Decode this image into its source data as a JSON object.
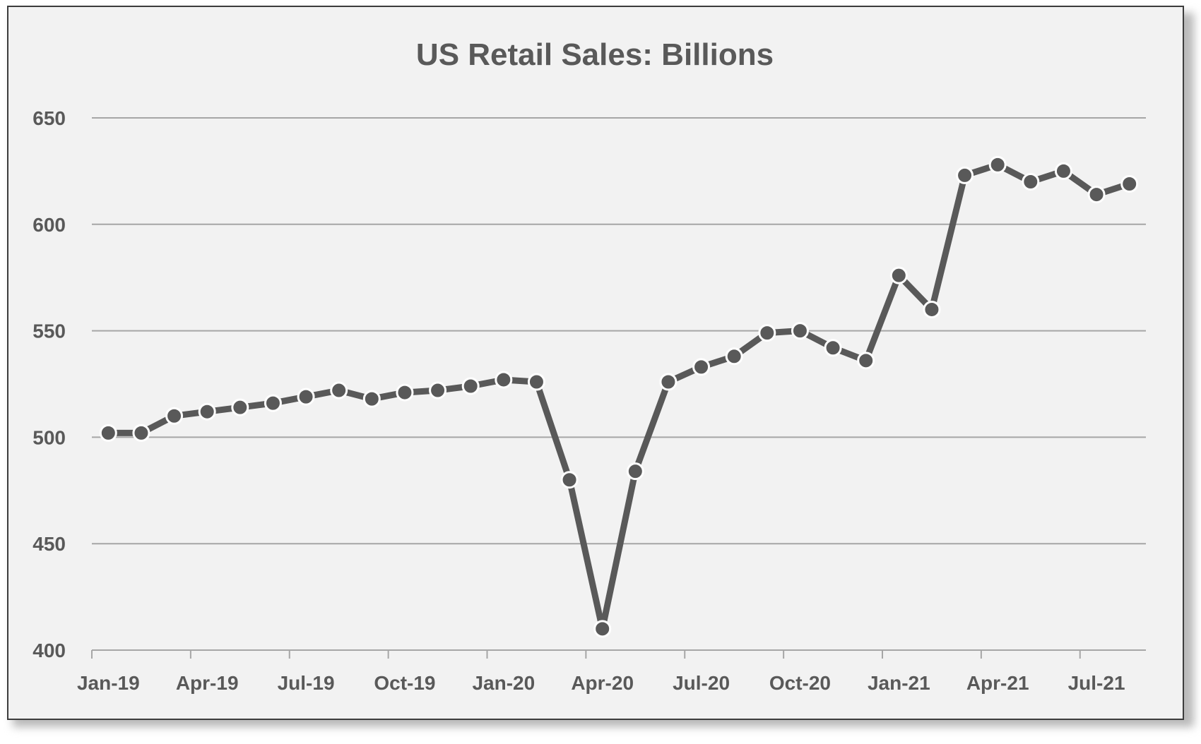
{
  "chart_data": {
    "type": "line",
    "title": "US Retail Sales: Billions",
    "xlabel": "",
    "ylabel": "",
    "ylim": [
      400,
      650
    ],
    "yticks": [
      400,
      450,
      500,
      550,
      600,
      650
    ],
    "x_tick_labels": [
      "Jan-19",
      "Apr-19",
      "Jul-19",
      "Oct-19",
      "Jan-20",
      "Apr-20",
      "Jul-20",
      "Oct-20",
      "Jan-21",
      "Apr-21",
      "Jul-21"
    ],
    "grid": true,
    "legend": "none",
    "colors": {
      "line": "#595959",
      "marker_edge": "#ffffff",
      "grid": "#a6a6a6",
      "background": "#f2f2f2"
    },
    "x": [
      "2019-01",
      "2019-02",
      "2019-03",
      "2019-04",
      "2019-05",
      "2019-06",
      "2019-07",
      "2019-08",
      "2019-09",
      "2019-10",
      "2019-11",
      "2019-12",
      "2020-01",
      "2020-02",
      "2020-03",
      "2020-04",
      "2020-05",
      "2020-06",
      "2020-07",
      "2020-08",
      "2020-09",
      "2020-10",
      "2020-11",
      "2020-12",
      "2021-01",
      "2021-02",
      "2021-03",
      "2021-04",
      "2021-05",
      "2021-06",
      "2021-07",
      "2021-08"
    ],
    "series": [
      {
        "values": [
          502,
          502,
          510,
          512,
          514,
          516,
          519,
          522,
          518,
          521,
          522,
          524,
          527,
          526,
          480,
          410,
          484,
          526,
          533,
          538,
          549,
          550,
          542,
          536,
          576,
          560,
          623,
          628,
          620,
          625,
          614,
          619
        ]
      }
    ]
  }
}
